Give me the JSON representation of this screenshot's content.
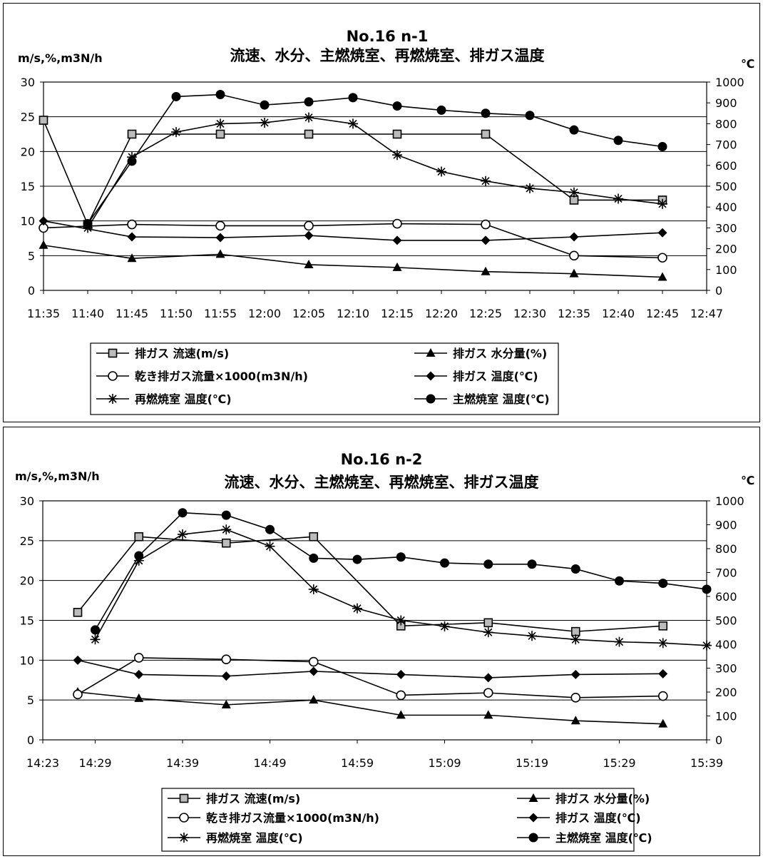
{
  "chart_data": [
    {
      "type": "line",
      "title": "No.16  n-1",
      "subtitle": "流速、水分、主燃焼室、再燃焼室、排ガス温度",
      "ylabel": "m/s,%,m3N/h",
      "y2label": "℃",
      "ylim": [
        0,
        30
      ],
      "y2lim": [
        0,
        1000
      ],
      "yticks": [
        "0",
        "5",
        "10",
        "15",
        "20",
        "25",
        "30"
      ],
      "y2ticks": [
        "0",
        "100",
        "200",
        "300",
        "400",
        "500",
        "600",
        "700",
        "800",
        "900",
        "1000"
      ],
      "x_unit_minutes": true,
      "x_start": "11:35",
      "x_end": "12:47",
      "xticks": [
        {
          "label": "11:35",
          "t": 0
        },
        {
          "label": "11:40",
          "t": 5
        },
        {
          "label": "11:45",
          "t": 10
        },
        {
          "label": "11:50",
          "t": 15
        },
        {
          "label": "11:55",
          "t": 20
        },
        {
          "label": "12:00",
          "t": 25
        },
        {
          "label": "12:05",
          "t": 30
        },
        {
          "label": "12:10",
          "t": 35
        },
        {
          "label": "12:15",
          "t": 40
        },
        {
          "label": "12:20",
          "t": 45
        },
        {
          "label": "12:25",
          "t": 50
        },
        {
          "label": "12:30",
          "t": 55
        },
        {
          "label": "12:35",
          "t": 60
        },
        {
          "label": "12:40",
          "t": 65
        },
        {
          "label": "12:45",
          "t": 70
        },
        {
          "label": "12:47",
          "t": 75
        }
      ],
      "grid": "horizontal",
      "legend_position": "bottom",
      "series": [
        {
          "name": "排ガス 流速(m/s)",
          "axis": "left",
          "marker": "square",
          "x": [
            "11:35",
            "11:40",
            "11:45",
            "11:55",
            "12:05",
            "12:15",
            "12:25",
            "12:35",
            "12:45"
          ],
          "t": [
            0,
            5,
            10,
            20,
            30,
            40,
            50,
            60,
            70
          ],
          "values": [
            24.5,
            9.5,
            22.5,
            22.5,
            22.5,
            22.5,
            22.5,
            13,
            13
          ]
        },
        {
          "name": "排ガス 水分量(%)",
          "axis": "left",
          "marker": "triangle",
          "x": [
            "11:35",
            "11:45",
            "11:55",
            "12:05",
            "12:15",
            "12:25",
            "12:35",
            "12:45"
          ],
          "t": [
            0,
            10,
            20,
            30,
            40,
            50,
            60,
            70
          ],
          "values": [
            6.5,
            4.6,
            5.2,
            3.7,
            3.3,
            2.7,
            2.4,
            1.9
          ]
        },
        {
          "name": "乾き排ガス流量×1000(m3N/h)",
          "axis": "left",
          "marker": "circle-open",
          "x": [
            "11:35",
            "11:45",
            "11:55",
            "12:05",
            "12:15",
            "12:25",
            "12:35",
            "12:45"
          ],
          "t": [
            0,
            10,
            20,
            30,
            40,
            50,
            60,
            70
          ],
          "values": [
            9,
            9.5,
            9.3,
            9.3,
            9.6,
            9.5,
            5,
            4.7
          ]
        },
        {
          "name": "排ガス 温度(℃)",
          "axis": "left",
          "marker": "diamond",
          "x": [
            "11:35",
            "11:45",
            "11:55",
            "12:05",
            "12:15",
            "12:25",
            "12:35",
            "12:45"
          ],
          "t": [
            0,
            10,
            20,
            30,
            40,
            50,
            60,
            70
          ],
          "values": [
            10,
            7.7,
            7.6,
            7.9,
            7.2,
            7.2,
            7.7,
            8.3
          ]
        },
        {
          "name": "再燃焼室 温度(℃)",
          "axis": "right",
          "marker": "asterisk",
          "x": [
            "11:40",
            "11:45",
            "11:50",
            "11:55",
            "12:00",
            "12:05",
            "12:10",
            "12:15",
            "12:20",
            "12:25",
            "12:30",
            "12:35",
            "12:40",
            "12:45"
          ],
          "t": [
            5,
            10,
            15,
            20,
            25,
            30,
            35,
            40,
            45,
            50,
            55,
            60,
            65,
            70
          ],
          "values": [
            300,
            640,
            760,
            800,
            805,
            830,
            800,
            650,
            570,
            525,
            490,
            470,
            440,
            415
          ]
        },
        {
          "name": "主燃焼室 温度(℃)",
          "axis": "right",
          "marker": "circle-filled",
          "x": [
            "11:40",
            "11:45",
            "11:50",
            "11:55",
            "12:00",
            "12:05",
            "12:10",
            "12:15",
            "12:20",
            "12:25",
            "12:30",
            "12:35",
            "12:40",
            "12:45"
          ],
          "t": [
            5,
            10,
            15,
            20,
            25,
            30,
            35,
            40,
            45,
            50,
            55,
            60,
            65,
            70
          ],
          "values": [
            320,
            620,
            930,
            940,
            890,
            905,
            925,
            885,
            865,
            850,
            840,
            770,
            720,
            690
          ]
        }
      ]
    },
    {
      "type": "line",
      "title": "No.16  n-2",
      "subtitle": "流速、水分、主燃焼室、再燃焼室、排ガス温度",
      "ylabel": "m/s,%,m3N/h",
      "y2label": "℃",
      "ylim": [
        0,
        30
      ],
      "y2lim": [
        0,
        1000
      ],
      "yticks": [
        "0",
        "5",
        "10",
        "15",
        "20",
        "25",
        "30"
      ],
      "y2ticks": [
        "0",
        "100",
        "200",
        "300",
        "400",
        "500",
        "600",
        "700",
        "800",
        "900",
        "1000"
      ],
      "x_start": "14:23",
      "x_end": "15:39",
      "xticks": [
        {
          "label": "14:23",
          "t": 0
        },
        {
          "label": "14:29",
          "t": 6
        },
        {
          "label": "14:39",
          "t": 16
        },
        {
          "label": "14:49",
          "t": 26
        },
        {
          "label": "14:59",
          "t": 36
        },
        {
          "label": "15:09",
          "t": 46
        },
        {
          "label": "15:19",
          "t": 56
        },
        {
          "label": "15:29",
          "t": 66
        },
        {
          "label": "15:39",
          "t": 76
        }
      ],
      "grid": "horizontal",
      "legend_position": "bottom",
      "series": [
        {
          "name": "排ガス 流速(m/s)",
          "axis": "left",
          "marker": "square",
          "x": [
            "14:27",
            "14:34",
            "14:44",
            "14:54",
            "15:04",
            "15:14",
            "15:24",
            "15:34"
          ],
          "t": [
            4,
            11,
            21,
            31,
            41,
            51,
            61,
            71
          ],
          "values": [
            16,
            25.5,
            24.7,
            25.5,
            14.3,
            14.7,
            13.6,
            14.3
          ]
        },
        {
          "name": "排ガス 水分量(%)",
          "axis": "left",
          "marker": "triangle",
          "x": [
            "14:27",
            "14:34",
            "14:44",
            "14:54",
            "15:04",
            "15:14",
            "15:24",
            "15:34"
          ],
          "t": [
            4,
            11,
            21,
            31,
            41,
            51,
            61,
            71
          ],
          "values": [
            6,
            5.2,
            4.4,
            5,
            3.1,
            3.1,
            2.4,
            2
          ]
        },
        {
          "name": "乾き排ガス流量×1000(m3N/h)",
          "axis": "left",
          "marker": "circle-open",
          "x": [
            "14:27",
            "14:34",
            "14:44",
            "14:54",
            "15:04",
            "15:14",
            "15:24",
            "15:34"
          ],
          "t": [
            4,
            11,
            21,
            31,
            41,
            51,
            61,
            71
          ],
          "values": [
            5.7,
            10.3,
            10.1,
            9.8,
            5.6,
            5.9,
            5.3,
            5.5
          ]
        },
        {
          "name": "排ガス 温度(℃)",
          "axis": "left",
          "marker": "diamond",
          "x": [
            "14:27",
            "14:34",
            "14:44",
            "14:54",
            "15:04",
            "15:14",
            "15:24",
            "15:34"
          ],
          "t": [
            4,
            11,
            21,
            31,
            41,
            51,
            61,
            71
          ],
          "values": [
            10,
            8.2,
            8,
            8.6,
            8.2,
            7.8,
            8.2,
            8.3
          ]
        },
        {
          "name": "再燃焼室 温度(℃)",
          "axis": "right",
          "marker": "asterisk",
          "x": [
            "14:29",
            "14:34",
            "14:39",
            "14:44",
            "14:49",
            "14:54",
            "14:59",
            "15:04",
            "15:09",
            "15:14",
            "15:19",
            "15:24",
            "15:29",
            "15:34",
            "15:39"
          ],
          "t": [
            6,
            11,
            16,
            21,
            26,
            31,
            36,
            41,
            46,
            51,
            56,
            61,
            66,
            71,
            76
          ],
          "values": [
            420,
            750,
            860,
            880,
            810,
            630,
            550,
            500,
            475,
            450,
            435,
            420,
            410,
            405,
            395
          ]
        },
        {
          "name": "主燃焼室 温度(℃)",
          "axis": "right",
          "marker": "circle-filled",
          "x": [
            "14:29",
            "14:34",
            "14:39",
            "14:44",
            "14:49",
            "14:54",
            "14:59",
            "15:04",
            "15:09",
            "15:14",
            "15:19",
            "15:24",
            "15:29",
            "15:34",
            "15:39"
          ],
          "t": [
            6,
            11,
            16,
            21,
            26,
            31,
            36,
            41,
            46,
            51,
            56,
            61,
            66,
            71,
            76
          ],
          "values": [
            460,
            770,
            950,
            940,
            880,
            760,
            755,
            765,
            740,
            735,
            735,
            715,
            665,
            655,
            630
          ]
        }
      ]
    }
  ]
}
